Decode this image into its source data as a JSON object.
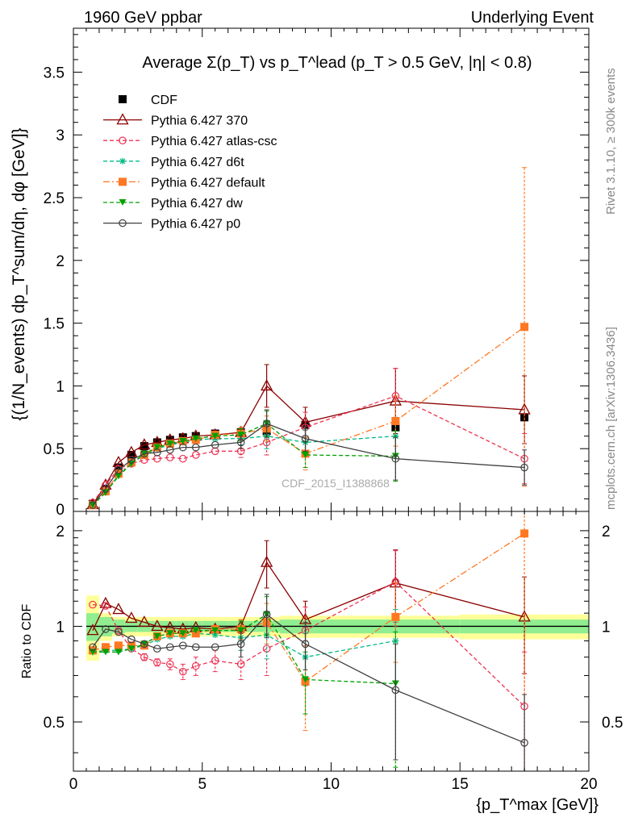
{
  "header": {
    "left": "1960 GeV ppbar",
    "right": "Underlying Event"
  },
  "side_labels": {
    "rivet": "Rivet 3.1.10, ≥ 300k events",
    "mcplots": "mcplots.cern.ch [arXiv:1306.3436]"
  },
  "watermark": "CDF_2015_I1388868",
  "colors": {
    "CDF": "#000000",
    "Pythia 6.427 370": "#8b0000",
    "Pythia 6.427 atlas-csc": "#ee3355",
    "Pythia 6.427 d6t": "#00bb88",
    "Pythia 6.427 default": "#ff7722",
    "Pythia 6.427 dw": "#00a000",
    "Pythia 6.427 p0": "#404040",
    "band_inner": "#90ee90",
    "band_outer": "#ffff99"
  },
  "chart_data": [
    {
      "type": "line",
      "title": "Average Σ(p_T) vs p_T^lead (p_T > 0.5 GeV, |η| < 0.8)",
      "xlabel": "{p_T^max [GeV]}",
      "ylabel": "{(1/N_events) dp_T^sum/dη, dφ [GeV]}",
      "xlim": [
        0,
        20
      ],
      "ylim": [
        0,
        3.85
      ],
      "yticks": [
        "0",
        "0.5",
        "1",
        "1.5",
        "2",
        "2.5",
        "3",
        "3.5"
      ],
      "xticks": [
        "0",
        "5",
        "10",
        "15",
        "20"
      ],
      "legend_position": "top-left",
      "x": [
        0.75,
        1.25,
        1.75,
        2.25,
        2.75,
        3.25,
        3.75,
        4.25,
        4.75,
        5.5,
        6.5,
        7.5,
        9.0,
        12.5,
        17.5
      ],
      "series": [
        {
          "name": "CDF",
          "marker": "square",
          "values": [
            0.06,
            0.18,
            0.35,
            0.45,
            0.52,
            0.55,
            0.57,
            0.59,
            0.6,
            0.62,
            0.63,
            0.64,
            0.69,
            0.67,
            0.75
          ]
        },
        {
          "name": "Pythia 6.427 370",
          "marker": "triangle-open",
          "values": [
            0.055,
            0.21,
            0.39,
            0.47,
            0.53,
            0.55,
            0.57,
            0.58,
            0.6,
            0.61,
            0.63,
            1.0,
            0.71,
            0.88,
            0.81
          ],
          "errors": [
            0,
            0,
            0,
            0,
            0,
            0,
            0,
            0,
            0,
            0,
            0,
            0.17,
            0.12,
            0.26,
            0.27
          ]
        },
        {
          "name": "Pythia 6.427 atlas-csc",
          "marker": "circle-open",
          "values": [
            0.07,
            0.21,
            0.34,
            0.38,
            0.41,
            0.42,
            0.43,
            0.42,
            0.45,
            0.48,
            0.48,
            0.55,
            0.67,
            0.92,
            0.42
          ],
          "errors": [
            0,
            0,
            0,
            0,
            0,
            0,
            0,
            0,
            0,
            0,
            0.05,
            0.1,
            0.12,
            0.22,
            0.2
          ]
        },
        {
          "name": "Pythia 6.427 d6t",
          "marker": "star",
          "values": [
            0.05,
            0.15,
            0.29,
            0.38,
            0.45,
            0.5,
            0.53,
            0.55,
            0.57,
            0.58,
            0.58,
            0.6,
            0.55,
            0.6,
            null
          ],
          "errors": [
            0,
            0,
            0,
            0,
            0,
            0,
            0,
            0,
            0,
            0,
            0.05,
            0.1,
            0.1,
            0.15,
            0
          ]
        },
        {
          "name": "Pythia 6.427 default",
          "marker": "square",
          "values": [
            0.05,
            0.16,
            0.3,
            0.39,
            0.45,
            0.51,
            0.54,
            0.56,
            0.57,
            0.61,
            0.62,
            0.66,
            0.46,
            0.72,
            1.47
          ],
          "errors": [
            0,
            0,
            0,
            0,
            0,
            0,
            0,
            0,
            0,
            0,
            0.05,
            0.1,
            0.13,
            0.2,
            1.27
          ]
        },
        {
          "name": "Pythia 6.427 dw",
          "marker": "triangle-down",
          "values": [
            0.05,
            0.15,
            0.28,
            0.38,
            0.46,
            0.51,
            0.54,
            0.56,
            0.58,
            0.6,
            0.61,
            0.7,
            0.45,
            0.44,
            null
          ],
          "errors": [
            0,
            0,
            0,
            0,
            0,
            0,
            0,
            0,
            0,
            0,
            0.05,
            0.1,
            0.1,
            0.2,
            0
          ]
        },
        {
          "name": "Pythia 6.427 p0",
          "marker": "circle-open",
          "values": [
            0.05,
            0.18,
            0.33,
            0.41,
            0.46,
            0.47,
            0.49,
            0.51,
            0.51,
            0.53,
            0.55,
            0.7,
            0.58,
            0.42,
            0.35
          ],
          "errors": [
            0,
            0,
            0,
            0,
            0,
            0,
            0,
            0,
            0,
            0,
            0.05,
            0.11,
            0.1,
            0.17,
            0.14
          ]
        }
      ]
    },
    {
      "type": "line",
      "ylabel": "Ratio to CDF",
      "xlabel": "{p_T^max [GeV]}",
      "xlim": [
        0,
        20
      ],
      "ylim": [
        0.35,
        2.3
      ],
      "yticks": [
        "0.5",
        "1",
        "2"
      ],
      "bin_edges": [
        0.5,
        1.0,
        1.5,
        2.0,
        2.5,
        3.0,
        3.5,
        4.0,
        4.5,
        5.0,
        6.0,
        7.0,
        8.0,
        10.0,
        15.0,
        20.0
      ],
      "band_inner": [
        0.9,
        0.93,
        0.95,
        0.96,
        0.96,
        0.96,
        0.96,
        0.96,
        0.96,
        0.96,
        0.96,
        0.96,
        0.95,
        0.95,
        0.95
      ],
      "band_inner_hi": [
        1.1,
        1.07,
        1.05,
        1.04,
        1.04,
        1.04,
        1.04,
        1.04,
        1.04,
        1.04,
        1.04,
        1.04,
        1.05,
        1.05,
        1.05
      ],
      "band_outer": [
        0.78,
        0.9,
        0.93,
        0.93,
        0.93,
        0.93,
        0.93,
        0.93,
        0.93,
        0.93,
        0.93,
        0.93,
        0.92,
        0.92,
        0.91
      ],
      "band_outer_hi": [
        1.25,
        1.1,
        1.07,
        1.07,
        1.07,
        1.07,
        1.07,
        1.07,
        1.07,
        1.07,
        1.07,
        1.07,
        1.08,
        1.08,
        1.09
      ],
      "x": [
        0.75,
        1.25,
        1.75,
        2.25,
        2.75,
        3.25,
        3.75,
        4.25,
        4.75,
        5.5,
        6.5,
        7.5,
        9.0,
        12.5,
        17.5
      ],
      "series": [
        {
          "name": "Pythia 6.427 370",
          "marker": "triangle-open",
          "values": [
            0.97,
            1.18,
            1.13,
            1.06,
            1.03,
            1.0,
            0.99,
            0.98,
            0.99,
            0.98,
            1.0,
            1.59,
            1.05,
            1.37,
            1.07
          ],
          "errors": [
            0,
            0,
            0,
            0,
            0,
            0,
            0,
            0,
            0,
            0,
            0.05,
            0.27,
            0.15,
            0.37,
            0.36
          ]
        },
        {
          "name": "Pythia 6.427 atlas-csc",
          "marker": "circle-open",
          "values": [
            1.17,
            1.16,
            0.97,
            0.85,
            0.8,
            0.77,
            0.76,
            0.72,
            0.75,
            0.78,
            0.76,
            0.85,
            0.97,
            1.38,
            0.56
          ],
          "errors": [
            0,
            0,
            0,
            0,
            0.02,
            0.02,
            0.03,
            0.04,
            0.05,
            0.06,
            0.08,
            0.15,
            0.18,
            0.35,
            0.27
          ]
        },
        {
          "name": "Pythia 6.427 d6t",
          "marker": "star",
          "values": [
            0.83,
            0.84,
            0.84,
            0.85,
            0.87,
            0.91,
            0.93,
            0.93,
            0.95,
            0.94,
            0.92,
            0.94,
            0.8,
            0.9,
            null
          ],
          "errors": [
            0,
            0,
            0,
            0,
            0,
            0,
            0,
            0,
            0,
            0,
            0.08,
            0.15,
            0.15,
            0.23,
            0
          ]
        },
        {
          "name": "Pythia 6.427 default",
          "marker": "square",
          "values": [
            0.84,
            0.86,
            0.87,
            0.87,
            0.87,
            0.93,
            0.95,
            0.95,
            0.95,
            0.98,
            0.98,
            1.03,
            0.67,
            1.07,
            1.96
          ],
          "errors": [
            0,
            0,
            0,
            0,
            0,
            0,
            0,
            0,
            0,
            0,
            0.07,
            0.15,
            0.2,
            0.3,
            1.7
          ]
        },
        {
          "name": "Pythia 6.427 dw",
          "marker": "triangle-down",
          "values": [
            0.83,
            0.83,
            0.83,
            0.85,
            0.88,
            0.93,
            0.95,
            0.95,
            0.97,
            0.97,
            0.97,
            1.09,
            0.68,
            0.66,
            null
          ],
          "errors": [
            0,
            0,
            0,
            0,
            0,
            0,
            0,
            0,
            0,
            0,
            0.07,
            0.15,
            0.15,
            0.3,
            0
          ]
        },
        {
          "name": "Pythia 6.427 p0",
          "marker": "circle-open",
          "values": [
            0.86,
            0.98,
            0.96,
            0.91,
            0.88,
            0.85,
            0.86,
            0.87,
            0.86,
            0.86,
            0.88,
            1.09,
            0.88,
            0.63,
            0.43
          ],
          "errors": [
            0,
            0,
            0,
            0,
            0,
            0,
            0,
            0,
            0,
            0,
            0.08,
            0.17,
            0.15,
            0.25,
            0.18
          ]
        }
      ]
    }
  ]
}
